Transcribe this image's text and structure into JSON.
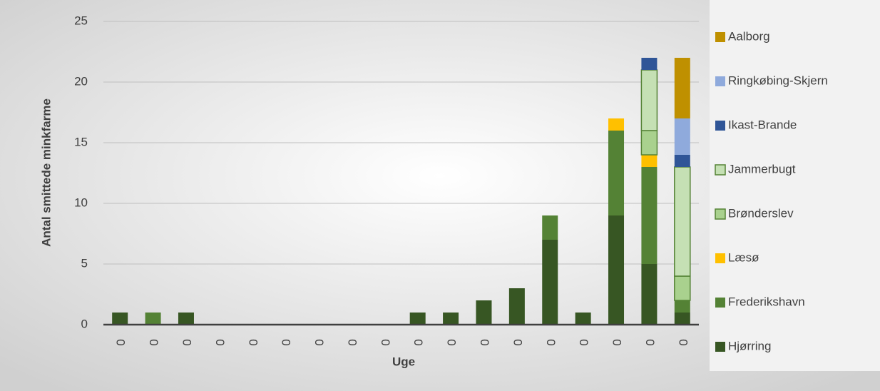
{
  "chart_data": {
    "type": "stacked_bar",
    "x_label": "Uge",
    "y_label": "Antal smittede minkfarme",
    "categories": [
      "0",
      "0",
      "0",
      "0",
      "0",
      "0",
      "0",
      "0",
      "0",
      "0",
      "0",
      "0",
      "0",
      "0",
      "0",
      "0",
      "0",
      "0"
    ],
    "series": [
      {
        "name": "Hjørring",
        "color": "#375623",
        "values": [
          1,
          0,
          1,
          0,
          0,
          0,
          0,
          0,
          0,
          1,
          1,
          2,
          3,
          7,
          1,
          9,
          5,
          1
        ]
      },
      {
        "name": "Frederikshavn",
        "color": "#548235",
        "values": [
          0,
          1,
          0,
          0,
          0,
          0,
          0,
          0,
          0,
          0,
          0,
          0,
          0,
          2,
          0,
          7,
          8,
          1
        ]
      },
      {
        "name": "Læsø",
        "color": "#ffc000",
        "values": [
          0,
          0,
          0,
          0,
          0,
          0,
          0,
          0,
          0,
          0,
          0,
          0,
          0,
          0,
          0,
          1,
          1,
          0
        ]
      },
      {
        "name": "Brønderslev",
        "color": "#a9d18e",
        "edgecolor": "#548235",
        "values": [
          0,
          0,
          0,
          0,
          0,
          0,
          0,
          0,
          0,
          0,
          0,
          0,
          0,
          0,
          0,
          0,
          2,
          2
        ]
      },
      {
        "name": "Jammerbugt",
        "color": "#c5e0b4",
        "edgecolor": "#548235",
        "values": [
          0,
          0,
          0,
          0,
          0,
          0,
          0,
          0,
          0,
          0,
          0,
          0,
          0,
          0,
          0,
          0,
          5,
          9
        ]
      },
      {
        "name": "Ikast-Brande",
        "color": "#2f5597",
        "values": [
          0,
          0,
          0,
          0,
          0,
          0,
          0,
          0,
          0,
          0,
          0,
          0,
          0,
          0,
          0,
          0,
          1,
          1
        ]
      },
      {
        "name": "Ringkøbing-Skjern",
        "color": "#8faadc",
        "values": [
          0,
          0,
          0,
          0,
          0,
          0,
          0,
          0,
          0,
          0,
          0,
          0,
          0,
          0,
          0,
          0,
          0,
          3
        ]
      },
      {
        "name": "Aalborg",
        "color": "#bf9000",
        "values": [
          0,
          0,
          0,
          0,
          0,
          0,
          0,
          0,
          0,
          0,
          0,
          0,
          0,
          0,
          0,
          0,
          0,
          5
        ]
      }
    ],
    "ylim": [
      0,
      25
    ],
    "yticks": [
      0,
      5,
      10,
      15,
      20,
      25
    ],
    "grid": true,
    "legend": "right"
  }
}
